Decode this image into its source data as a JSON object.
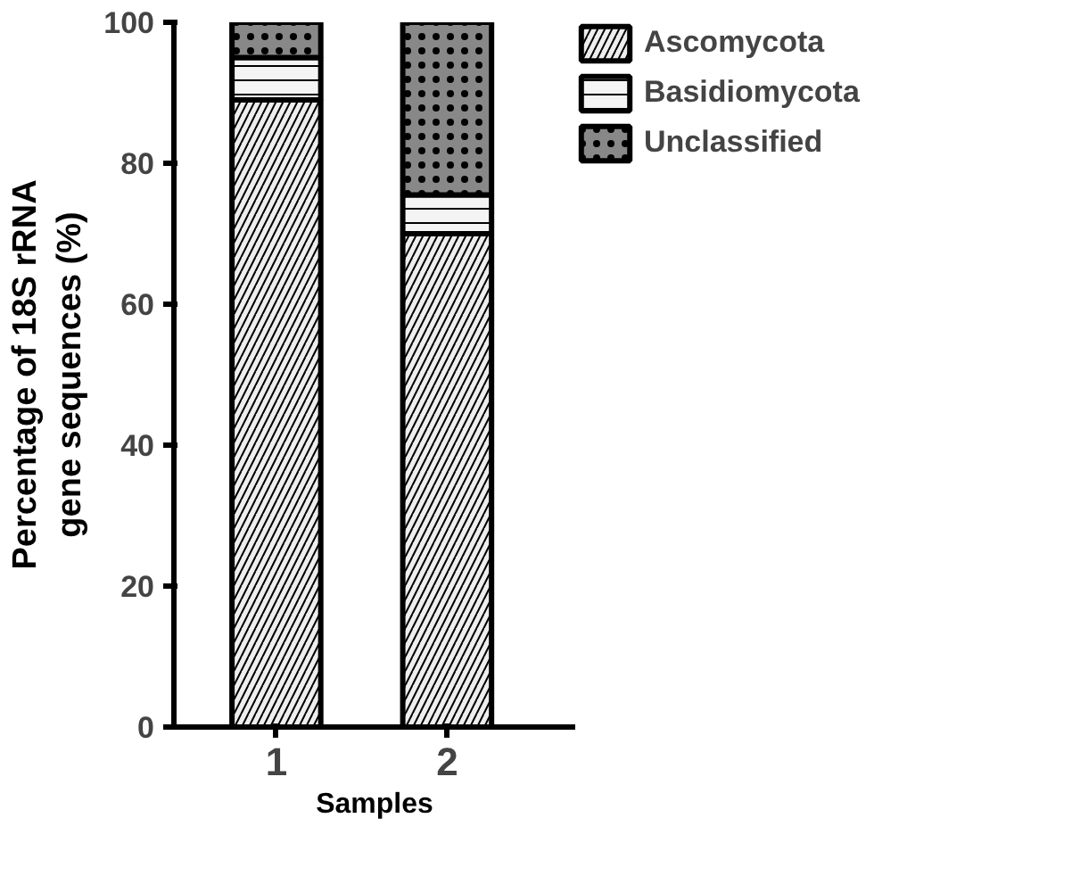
{
  "chart_data": {
    "type": "bar",
    "stacked": true,
    "xlabel": "Samples",
    "ylabel": "Percentage of 18S rRNA\ngene sequences (%)",
    "categories": [
      "1",
      "2"
    ],
    "series": [
      {
        "name": "Ascomycota",
        "color": "#eeeeee",
        "values": [
          89,
          70
        ]
      },
      {
        "name": "Basidiomycota",
        "color": "#f4f4f4",
        "values": [
          6,
          5.5
        ]
      },
      {
        "name": "Unclassified",
        "color": "#888888",
        "values": [
          5,
          24.5
        ]
      }
    ],
    "ylim": [
      0,
      100
    ],
    "yticks": [
      0,
      20,
      40,
      60,
      80,
      100
    ],
    "grid": false,
    "legend": "top right"
  }
}
